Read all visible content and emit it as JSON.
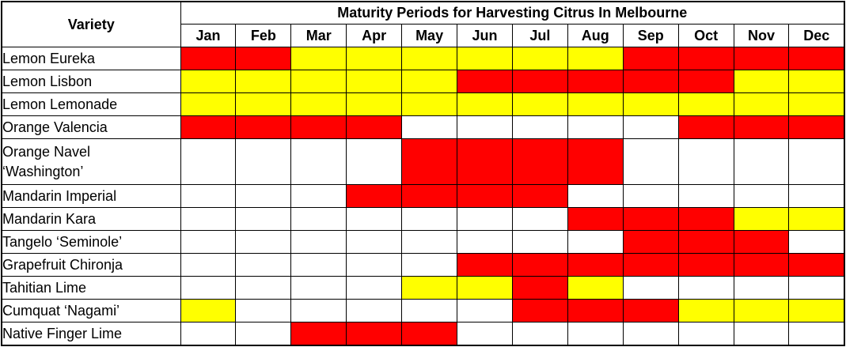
{
  "header": {
    "corner_label": "Variety",
    "title": "Maturity Periods for Harvesting Citrus In Melbourne"
  },
  "chart_data": {
    "type": "heatmap",
    "title": "Maturity Periods for Harvesting Citrus In Melbourne",
    "x": [
      "Jan",
      "Feb",
      "Mar",
      "Apr",
      "May",
      "Jun",
      "Jul",
      "Aug",
      "Sep",
      "Oct",
      "Nov",
      "Dec"
    ],
    "categories": [
      "Lemon Eureka",
      "Lemon Lisbon",
      "Lemon Lemonade",
      "Orange Valencia",
      "Orange Navel ‘Washington’",
      "Mandarin Imperial",
      "Mandarin Kara",
      "Tangelo ‘Seminole’",
      "Grapefruit Chironja",
      "Tahitian Lime",
      "Cumquat ‘Nagami’",
      "Native Finger Lime"
    ],
    "color_key": {
      "R": "#ff0000",
      "Y": "#ffff00",
      "W": "#ffffff"
    },
    "grid": true,
    "legend_position": "none",
    "rows": [
      {
        "variety": "Lemon Eureka",
        "tall": false,
        "cells": [
          "R",
          "R",
          "Y",
          "Y",
          "Y",
          "Y",
          "Y",
          "Y",
          "R",
          "R",
          "R",
          "R"
        ]
      },
      {
        "variety": "Lemon Lisbon",
        "tall": false,
        "cells": [
          "Y",
          "Y",
          "Y",
          "Y",
          "Y",
          "R",
          "R",
          "R",
          "R",
          "R",
          "Y",
          "Y"
        ]
      },
      {
        "variety": "Lemon Lemonade",
        "tall": false,
        "cells": [
          "Y",
          "Y",
          "Y",
          "Y",
          "Y",
          "Y",
          "Y",
          "Y",
          "Y",
          "Y",
          "Y",
          "Y"
        ]
      },
      {
        "variety": "Orange Valencia",
        "tall": false,
        "cells": [
          "R",
          "R",
          "R",
          "R",
          "W",
          "W",
          "W",
          "W",
          "W",
          "R",
          "R",
          "R"
        ]
      },
      {
        "variety": "Orange Navel\n‘Washington’",
        "tall": true,
        "cells": [
          "W",
          "W",
          "W",
          "W",
          "R",
          "R",
          "R",
          "R",
          "W",
          "W",
          "W",
          "W"
        ]
      },
      {
        "variety": "Mandarin Imperial",
        "tall": false,
        "cells": [
          "W",
          "W",
          "W",
          "R",
          "R",
          "R",
          "R",
          "W",
          "W",
          "W",
          "W",
          "W"
        ]
      },
      {
        "variety": "Mandarin Kara",
        "tall": false,
        "cells": [
          "W",
          "W",
          "W",
          "W",
          "W",
          "W",
          "W",
          "R",
          "R",
          "R",
          "Y",
          "Y"
        ]
      },
      {
        "variety": "Tangelo ‘Seminole’",
        "tall": false,
        "cells": [
          "W",
          "W",
          "W",
          "W",
          "W",
          "W",
          "W",
          "W",
          "R",
          "R",
          "R",
          "W"
        ]
      },
      {
        "variety": "Grapefruit Chironja",
        "tall": false,
        "cells": [
          "W",
          "W",
          "W",
          "W",
          "W",
          "R",
          "R",
          "R",
          "R",
          "R",
          "R",
          "R"
        ]
      },
      {
        "variety": "Tahitian Lime",
        "tall": false,
        "cells": [
          "W",
          "W",
          "W",
          "W",
          "Y",
          "Y",
          "R",
          "Y",
          "W",
          "W",
          "W",
          "W"
        ]
      },
      {
        "variety": "Cumquat ‘Nagami’",
        "tall": false,
        "cells": [
          "Y",
          "W",
          "W",
          "W",
          "W",
          "W",
          "R",
          "R",
          "R",
          "Y",
          "Y",
          "Y"
        ]
      },
      {
        "variety": "Native Finger Lime",
        "tall": false,
        "cells": [
          "W",
          "W",
          "R",
          "R",
          "R",
          "W",
          "W",
          "W",
          "W",
          "W",
          "W",
          "W"
        ]
      }
    ]
  }
}
